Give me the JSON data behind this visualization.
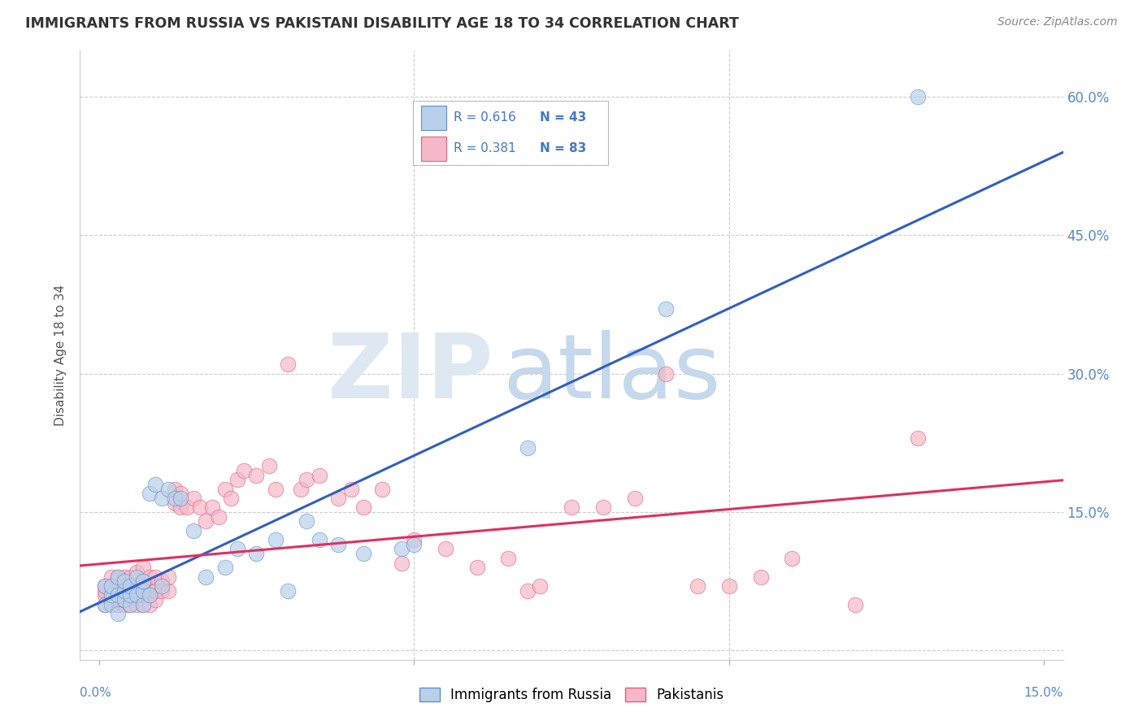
{
  "title": "IMMIGRANTS FROM RUSSIA VS PAKISTANI DISABILITY AGE 18 TO 34 CORRELATION CHART",
  "source": "Source: ZipAtlas.com",
  "ylabel": "Disability Age 18 to 34",
  "xmin": 0.0,
  "xmax": 0.15,
  "ymin": -0.01,
  "ymax": 0.65,
  "yticks": [
    0.0,
    0.15,
    0.3,
    0.45,
    0.6
  ],
  "ytick_labels": [
    "",
    "15.0%",
    "30.0%",
    "45.0%",
    "60.0%"
  ],
  "legend_r_blue": "R = 0.616",
  "legend_n_blue": "N = 43",
  "legend_r_pink": "R = 0.381",
  "legend_n_pink": "N = 83",
  "blue_fill": "#b8d0ea",
  "pink_fill": "#f5b8c8",
  "blue_edge": "#6090d0",
  "pink_edge": "#e06080",
  "blue_line": "#3060c0",
  "pink_line": "#e03060",
  "blue_scatter_x": [
    0.001,
    0.001,
    0.002,
    0.002,
    0.002,
    0.003,
    0.003,
    0.003,
    0.004,
    0.004,
    0.004,
    0.005,
    0.005,
    0.005,
    0.006,
    0.006,
    0.007,
    0.007,
    0.007,
    0.008,
    0.008,
    0.009,
    0.01,
    0.01,
    0.011,
    0.012,
    0.013,
    0.015,
    0.017,
    0.02,
    0.022,
    0.025,
    0.028,
    0.03,
    0.033,
    0.035,
    0.038,
    0.042,
    0.048,
    0.05,
    0.068,
    0.09,
    0.13
  ],
  "blue_scatter_y": [
    0.05,
    0.07,
    0.05,
    0.06,
    0.07,
    0.04,
    0.06,
    0.08,
    0.055,
    0.065,
    0.075,
    0.05,
    0.06,
    0.07,
    0.06,
    0.08,
    0.05,
    0.065,
    0.075,
    0.06,
    0.17,
    0.18,
    0.165,
    0.07,
    0.175,
    0.165,
    0.165,
    0.13,
    0.08,
    0.09,
    0.11,
    0.105,
    0.12,
    0.065,
    0.14,
    0.12,
    0.115,
    0.105,
    0.11,
    0.115,
    0.22,
    0.37,
    0.6
  ],
  "pink_scatter_x": [
    0.001,
    0.001,
    0.001,
    0.001,
    0.002,
    0.002,
    0.002,
    0.002,
    0.003,
    0.003,
    0.003,
    0.003,
    0.003,
    0.004,
    0.004,
    0.004,
    0.004,
    0.005,
    0.005,
    0.005,
    0.005,
    0.006,
    0.006,
    0.006,
    0.006,
    0.007,
    0.007,
    0.007,
    0.007,
    0.007,
    0.008,
    0.008,
    0.008,
    0.008,
    0.009,
    0.009,
    0.009,
    0.01,
    0.01,
    0.011,
    0.011,
    0.012,
    0.012,
    0.013,
    0.013,
    0.014,
    0.015,
    0.016,
    0.017,
    0.018,
    0.019,
    0.02,
    0.021,
    0.022,
    0.023,
    0.025,
    0.027,
    0.028,
    0.03,
    0.032,
    0.033,
    0.035,
    0.038,
    0.04,
    0.042,
    0.045,
    0.048,
    0.05,
    0.055,
    0.06,
    0.065,
    0.068,
    0.07,
    0.075,
    0.08,
    0.085,
    0.09,
    0.095,
    0.1,
    0.105,
    0.11,
    0.12,
    0.13
  ],
  "pink_scatter_y": [
    0.05,
    0.06,
    0.065,
    0.07,
    0.055,
    0.06,
    0.07,
    0.08,
    0.05,
    0.055,
    0.065,
    0.07,
    0.08,
    0.05,
    0.055,
    0.07,
    0.08,
    0.05,
    0.06,
    0.065,
    0.08,
    0.05,
    0.06,
    0.07,
    0.085,
    0.05,
    0.06,
    0.07,
    0.075,
    0.09,
    0.05,
    0.06,
    0.07,
    0.08,
    0.055,
    0.065,
    0.08,
    0.065,
    0.075,
    0.065,
    0.08,
    0.16,
    0.175,
    0.155,
    0.17,
    0.155,
    0.165,
    0.155,
    0.14,
    0.155,
    0.145,
    0.175,
    0.165,
    0.185,
    0.195,
    0.19,
    0.2,
    0.175,
    0.31,
    0.175,
    0.185,
    0.19,
    0.165,
    0.175,
    0.155,
    0.175,
    0.095,
    0.12,
    0.11,
    0.09,
    0.1,
    0.065,
    0.07,
    0.155,
    0.155,
    0.165,
    0.3,
    0.07,
    0.07,
    0.08,
    0.1,
    0.05,
    0.23
  ]
}
